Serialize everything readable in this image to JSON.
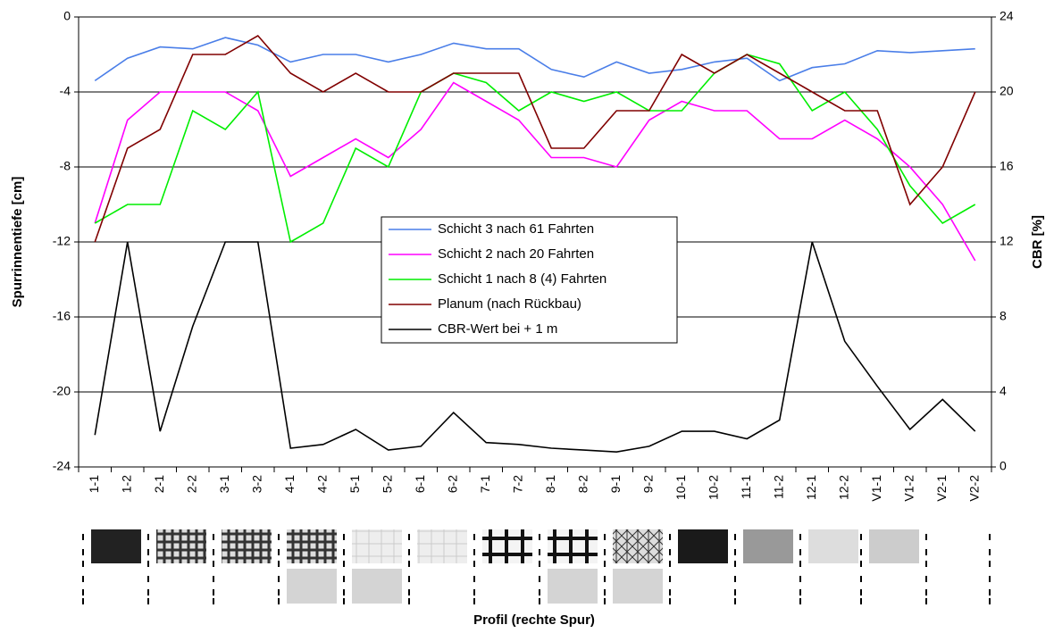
{
  "chart_data": {
    "type": "line",
    "x_label": "Profil (rechte Spur)",
    "y_label": "Spurrinnentiefe [cm]",
    "y2_label": "CBR [%]",
    "categories": [
      "1-1",
      "1-2",
      "2-1",
      "2-2",
      "3-1",
      "3-2",
      "4-1",
      "4-2",
      "5-1",
      "5-2",
      "6-1",
      "6-2",
      "7-1",
      "7-2",
      "8-1",
      "8-2",
      "9-1",
      "9-2",
      "10-1",
      "10-2",
      "11-1",
      "11-2",
      "12-1",
      "12-2",
      "V1-1",
      "V1-2",
      "V2-1",
      "V2-2"
    ],
    "ylim": [
      -24,
      0
    ],
    "yticks": [
      0,
      -4,
      -8,
      -12,
      -16,
      -20,
      -24
    ],
    "y2lim": [
      0,
      24
    ],
    "y2ticks": [
      0,
      4,
      8,
      12,
      16,
      20,
      24
    ],
    "grid": true,
    "series": [
      {
        "name": "Schicht 3 nach 61 Fahrten",
        "color": "#4a7ee8",
        "values": [
          -3.4,
          -2.2,
          -1.6,
          -1.7,
          -1.1,
          -1.5,
          -2.4,
          -2.0,
          -2.0,
          -2.4,
          -2.0,
          -1.4,
          -1.7,
          -1.7,
          -2.8,
          -3.2,
          -2.4,
          -3.0,
          -2.8,
          -2.4,
          -2.2,
          -3.4,
          -2.7,
          -2.5,
          -1.8,
          -1.9,
          -1.8,
          -1.7
        ]
      },
      {
        "name": "Schicht 2 nach 20 Fahrten",
        "color": "#ff00ff",
        "values": [
          -11,
          -5.5,
          -4,
          -4,
          -4,
          -5,
          -8.5,
          -7.5,
          -6.5,
          -7.5,
          -6,
          -3.5,
          -4.5,
          -5.5,
          -7.5,
          -7.5,
          -8,
          -5.5,
          -4.5,
          -5,
          -5,
          -6.5,
          -6.5,
          -5.5,
          -6.5,
          -8,
          -10,
          -13
        ]
      },
      {
        "name": "Schicht 1 nach 8 (4) Fahrten",
        "color": "#00ee00",
        "values": [
          -11,
          -10,
          -10,
          -5,
          -6,
          -4,
          -12,
          -11,
          -7,
          -8,
          -4,
          -3,
          -3.5,
          -5,
          -4,
          -4.5,
          -4,
          -5,
          -5,
          -3,
          -2,
          -2.5,
          -5,
          -4,
          -6,
          -9,
          -11,
          -10
        ]
      },
      {
        "name": "Planum (nach Rückbau)",
        "color": "#800000",
        "values": [
          -12,
          -7,
          -6,
          -2,
          -2,
          -1,
          -3,
          -4,
          -3,
          -4,
          -4,
          -3,
          -3,
          -3,
          -7,
          -7,
          -5,
          -5,
          -2,
          -3,
          -2,
          -3,
          -4,
          -5,
          -5,
          -10,
          -8,
          -4
        ]
      },
      {
        "name": "CBR-Wert bei + 1 m",
        "color": "#000000",
        "axis": "y2",
        "values": [
          1.7,
          12,
          1.9,
          7.5,
          12,
          12,
          1.0,
          1.2,
          2.0,
          0.9,
          1.1,
          2.9,
          1.3,
          1.2,
          1.0,
          0.9,
          0.8,
          1.1,
          1.9,
          1.9,
          1.5,
          2.5,
          12,
          6.7,
          4.3,
          2.0,
          3.6,
          1.9
        ]
      }
    ]
  }
}
